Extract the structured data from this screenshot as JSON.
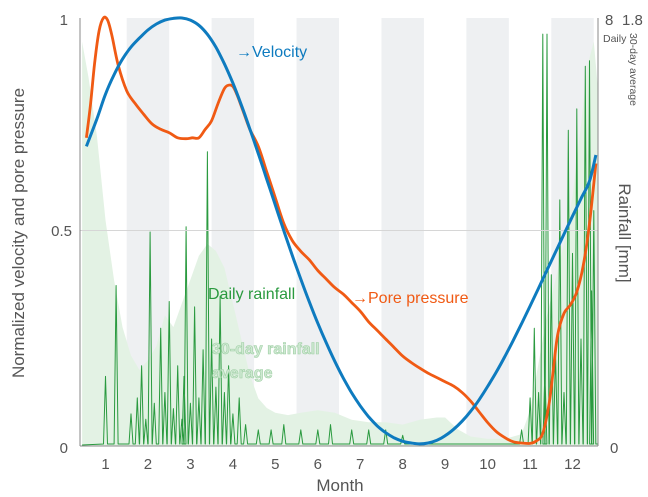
{
  "chart_data": {
    "type": "line",
    "xlabel": "Month",
    "ylabel_left": "Normalized velocity and pore pressure",
    "ylabel_right": "Rainfall [mm]",
    "x_ticks": [
      "1",
      "2",
      "3",
      "4",
      "5",
      "6",
      "7",
      "8",
      "9",
      "10",
      "11",
      "12"
    ],
    "y_left_ticks": [
      "0",
      "0.5",
      "1"
    ],
    "y_right_top_daily": "8",
    "y_right_top_avg": "1.8",
    "y_right_bottom": "0",
    "right_sub_daily": "Daily",
    "right_sub_avg": "30-day average",
    "xlim": [
      0.4,
      12.6
    ],
    "ylim": [
      0,
      1
    ],
    "daily_max": 8,
    "avg_max": 1.8,
    "grid": "horizontal line at 0.5; alternating month shading",
    "annotations": {
      "velocity": "→Velocity",
      "pore": "→Pore pressure",
      "daily": "Daily rainfall",
      "avg_line1": "30-day rainfall",
      "avg_line2": "average"
    },
    "colors": {
      "velocity": "#0e7bbf",
      "pore": "#f05a14",
      "daily": "#2a9a3f",
      "avg_fill": "#e3f2e4",
      "avg_text": "#b9dfbd",
      "shade": "#eef0f2"
    },
    "series": [
      {
        "name": "Velocity",
        "x": [
          0.55,
          0.8,
          1.0,
          1.2,
          1.4,
          1.6,
          1.8,
          2.0,
          2.2,
          2.4,
          2.6,
          2.8,
          3.0,
          3.2,
          3.4,
          3.6,
          3.8,
          4.0,
          4.2,
          4.4,
          4.6,
          4.8,
          5.0,
          5.2,
          5.4,
          5.6,
          5.8,
          6.0,
          6.2,
          6.4,
          6.6,
          6.8,
          7.0,
          7.2,
          7.4,
          7.6,
          7.8,
          8.0,
          8.2,
          8.4,
          8.6,
          8.8,
          9.0,
          9.2,
          9.4,
          9.6,
          9.8,
          10.0,
          10.2,
          10.4,
          10.6,
          10.8,
          11.0,
          11.2,
          11.4,
          11.6,
          11.8,
          12.0,
          12.2,
          12.4,
          12.55
        ],
        "y": [
          0.7,
          0.765,
          0.822,
          0.867,
          0.904,
          0.932,
          0.953,
          0.972,
          0.986,
          0.995,
          0.999,
          1.0,
          0.995,
          0.983,
          0.962,
          0.932,
          0.893,
          0.848,
          0.797,
          0.741,
          0.683,
          0.623,
          0.563,
          0.503,
          0.445,
          0.39,
          0.337,
          0.287,
          0.241,
          0.198,
          0.159,
          0.124,
          0.094,
          0.068,
          0.047,
          0.031,
          0.019,
          0.011,
          0.007,
          0.005,
          0.007,
          0.013,
          0.024,
          0.039,
          0.058,
          0.081,
          0.108,
          0.139,
          0.172,
          0.208,
          0.246,
          0.286,
          0.327,
          0.369,
          0.411,
          0.453,
          0.495,
          0.537,
          0.578,
          0.619,
          0.68
        ]
      },
      {
        "name": "Pore pressure",
        "x": [
          0.55,
          0.65,
          0.75,
          0.85,
          0.95,
          1.05,
          1.15,
          1.3,
          1.5,
          1.7,
          1.9,
          2.1,
          2.3,
          2.5,
          2.7,
          2.9,
          3.05,
          3.2,
          3.35,
          3.5,
          3.65,
          3.8,
          3.9,
          4.0,
          4.1,
          4.25,
          4.4,
          4.6,
          4.8,
          5.0,
          5.2,
          5.4,
          5.6,
          5.8,
          6.0,
          6.2,
          6.4,
          6.6,
          6.8,
          7.0,
          7.2,
          7.4,
          7.6,
          7.8,
          8.0,
          8.2,
          8.4,
          8.6,
          8.8,
          9.0,
          9.2,
          9.4,
          9.6,
          9.8,
          10.0,
          10.2,
          10.4,
          10.6,
          10.8,
          11.0,
          11.15,
          11.3,
          11.45,
          11.55,
          11.65,
          11.8,
          11.95,
          12.1,
          12.25,
          12.4,
          12.55
        ],
        "y": [
          0.72,
          0.8,
          0.9,
          0.97,
          1.0,
          0.995,
          0.96,
          0.89,
          0.83,
          0.8,
          0.775,
          0.752,
          0.74,
          0.732,
          0.72,
          0.718,
          0.72,
          0.72,
          0.74,
          0.76,
          0.8,
          0.835,
          0.843,
          0.84,
          0.82,
          0.78,
          0.74,
          0.7,
          0.64,
          0.58,
          0.52,
          0.48,
          0.455,
          0.435,
          0.41,
          0.39,
          0.37,
          0.355,
          0.335,
          0.315,
          0.29,
          0.27,
          0.25,
          0.23,
          0.21,
          0.195,
          0.182,
          0.17,
          0.16,
          0.15,
          0.14,
          0.125,
          0.105,
          0.08,
          0.055,
          0.034,
          0.02,
          0.01,
          0.007,
          0.006,
          0.012,
          0.03,
          0.1,
          0.18,
          0.26,
          0.31,
          0.33,
          0.36,
          0.42,
          0.52,
          0.66
        ]
      },
      {
        "name": "30-day rainfall average",
        "x": [
          0.45,
          0.6,
          0.8,
          1.0,
          1.2,
          1.4,
          1.6,
          1.8,
          2.0,
          2.2,
          2.4,
          2.6,
          2.8,
          3.0,
          3.2,
          3.4,
          3.6,
          3.8,
          4.0,
          4.2,
          4.4,
          4.6,
          4.8,
          5.0,
          5.3,
          5.6,
          6.0,
          6.4,
          6.8,
          7.2,
          7.6,
          8.0,
          8.4,
          8.8,
          9.0,
          9.3,
          9.6,
          10.0,
          10.4,
          10.8,
          11.0,
          11.2,
          11.4,
          11.6,
          11.8,
          12.0,
          12.2,
          12.35,
          12.5,
          12.6
        ],
        "y": [
          1.7,
          1.55,
          1.3,
          0.95,
          0.7,
          0.5,
          0.38,
          0.32,
          0.36,
          0.42,
          0.55,
          0.5,
          0.6,
          0.7,
          0.8,
          0.85,
          0.82,
          0.75,
          0.6,
          0.45,
          0.3,
          0.2,
          0.16,
          0.14,
          0.13,
          0.14,
          0.15,
          0.14,
          0.11,
          0.1,
          0.1,
          0.09,
          0.11,
          0.12,
          0.12,
          0.07,
          0.04,
          0.03,
          0.03,
          0.05,
          0.15,
          0.35,
          0.55,
          0.7,
          0.85,
          1.05,
          1.35,
          1.6,
          1.7,
          1.5
        ]
      },
      {
        "name": "Daily rainfall",
        "spikes": [
          [
            1.0,
            1.3
          ],
          [
            1.25,
            3.0
          ],
          [
            1.6,
            0.6
          ],
          [
            1.75,
            0.9
          ],
          [
            1.85,
            1.5
          ],
          [
            1.95,
            0.5
          ],
          [
            2.05,
            4.0
          ],
          [
            2.15,
            0.8
          ],
          [
            2.3,
            2.2
          ],
          [
            2.4,
            1.0
          ],
          [
            2.5,
            2.7
          ],
          [
            2.6,
            0.7
          ],
          [
            2.7,
            1.5
          ],
          [
            2.8,
            0.5
          ],
          [
            2.85,
            1.3
          ],
          [
            2.9,
            4.1
          ],
          [
            3.0,
            0.8
          ],
          [
            3.1,
            2.6
          ],
          [
            3.2,
            0.9
          ],
          [
            3.3,
            1.8
          ],
          [
            3.4,
            5.5
          ],
          [
            3.5,
            2.0
          ],
          [
            3.6,
            1.1
          ],
          [
            3.7,
            2.8
          ],
          [
            3.8,
            1.0
          ],
          [
            3.9,
            1.5
          ],
          [
            4.0,
            0.6
          ],
          [
            4.15,
            0.9
          ],
          [
            4.3,
            0.4
          ],
          [
            4.6,
            0.3
          ],
          [
            4.9,
            0.3
          ],
          [
            5.2,
            0.4
          ],
          [
            5.6,
            0.3
          ],
          [
            6.0,
            0.3
          ],
          [
            6.3,
            0.4
          ],
          [
            6.8,
            0.3
          ],
          [
            7.2,
            0.3
          ],
          [
            7.6,
            0.3
          ],
          [
            8.0,
            0.2
          ],
          [
            10.8,
            0.3
          ],
          [
            11.0,
            0.9
          ],
          [
            11.1,
            2.2
          ],
          [
            11.2,
            1.0
          ],
          [
            11.3,
            7.7
          ],
          [
            11.35,
            1.4
          ],
          [
            11.4,
            7.7
          ],
          [
            11.5,
            3.2
          ],
          [
            11.6,
            1.8
          ],
          [
            11.7,
            4.6
          ],
          [
            11.8,
            1.0
          ],
          [
            11.9,
            5.9
          ],
          [
            12.0,
            3.6
          ],
          [
            12.1,
            6.3
          ],
          [
            12.2,
            2.0
          ],
          [
            12.3,
            7.1
          ],
          [
            12.4,
            7.2
          ],
          [
            12.45,
            2.9
          ],
          [
            12.5,
            4.4
          ]
        ]
      }
    ]
  }
}
